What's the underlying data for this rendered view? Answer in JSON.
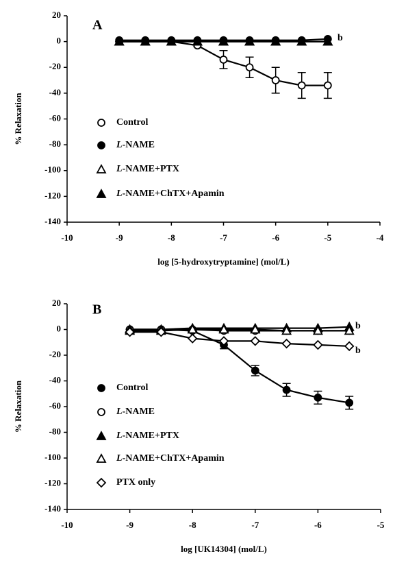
{
  "chart_data": [
    {
      "type": "line",
      "panel_label": "A",
      "x_label": "log [5-hydroxytryptamine] (mol/L)",
      "y_label": "% Relaxation",
      "xlim": [
        -10,
        -4
      ],
      "xticks": [
        -10,
        -9,
        -8,
        -7,
        -6,
        -5,
        -4
      ],
      "ylim": [
        -140,
        20
      ],
      "yticks": [
        -140,
        -120,
        -100,
        -80,
        -60,
        -40,
        -20,
        0,
        20
      ],
      "x": [
        -9,
        -8.5,
        -8,
        -7.5,
        -7,
        -6.5,
        -6,
        -5.5,
        -5
      ],
      "series": [
        {
          "name": "Control",
          "marker": "open-circle",
          "color": "#000000",
          "values": [
            0,
            0,
            0,
            -3,
            -14,
            -20,
            -30,
            -34,
            -34
          ],
          "errors": [
            0,
            0,
            0,
            1,
            7,
            8,
            10,
            10,
            10
          ]
        },
        {
          "name": "L-NAME",
          "marker": "filled-circle",
          "color": "#000000",
          "values": [
            1,
            1,
            1,
            1,
            1,
            1,
            1,
            1,
            2
          ]
        },
        {
          "name": "L-NAME+PTX",
          "marker": "open-triangle",
          "color": "#000000",
          "values": [
            0,
            0,
            0,
            0,
            0,
            0,
            0,
            0,
            0
          ]
        },
        {
          "name": "L-NAME+ChTX+Apamin",
          "marker": "filled-triangle",
          "color": "#000000",
          "values": [
            0,
            0,
            0,
            0,
            0,
            0,
            0,
            0,
            0
          ]
        }
      ],
      "annotations": [
        "b"
      ]
    },
    {
      "type": "line",
      "panel_label": "B",
      "x_label": "log [UK14304] (mol/L)",
      "y_label": "% Relaxation",
      "xlim": [
        -10,
        -5
      ],
      "xticks": [
        -10,
        -9,
        -8,
        -7,
        -6,
        -5
      ],
      "ylim": [
        -140,
        20
      ],
      "yticks": [
        -140,
        -120,
        -100,
        -80,
        -60,
        -40,
        -20,
        0,
        20
      ],
      "x": [
        -9,
        -8.5,
        -8,
        -7.5,
        -7,
        -6.5,
        -6,
        -5.5
      ],
      "series": [
        {
          "name": "Control",
          "marker": "filled-circle",
          "color": "#000000",
          "values": [
            0,
            0,
            -1,
            -12,
            -32,
            -47,
            -53,
            -57
          ],
          "errors": [
            0,
            0,
            0,
            3,
            4,
            5,
            5,
            5
          ]
        },
        {
          "name": "L-NAME",
          "marker": "open-circle",
          "color": "#000000",
          "values": [
            0,
            0,
            0,
            -1,
            -1,
            -1,
            -1,
            -1
          ]
        },
        {
          "name": "L-NAME+PTX",
          "marker": "filled-triangle",
          "color": "#000000",
          "values": [
            0,
            0,
            1,
            1,
            1,
            1,
            1,
            2
          ]
        },
        {
          "name": "L-NAME+ChTX+Apamin",
          "marker": "open-triangle",
          "color": "#000000",
          "values": [
            -1,
            -1,
            0,
            0,
            0,
            -1,
            -1,
            -1
          ]
        },
        {
          "name": "PTX only",
          "marker": "open-diamond",
          "color": "#000000",
          "values": [
            -2,
            -2,
            -7,
            -9,
            -9,
            -11,
            -12,
            -13
          ]
        }
      ],
      "annotations": [
        "b",
        "b"
      ]
    }
  ]
}
